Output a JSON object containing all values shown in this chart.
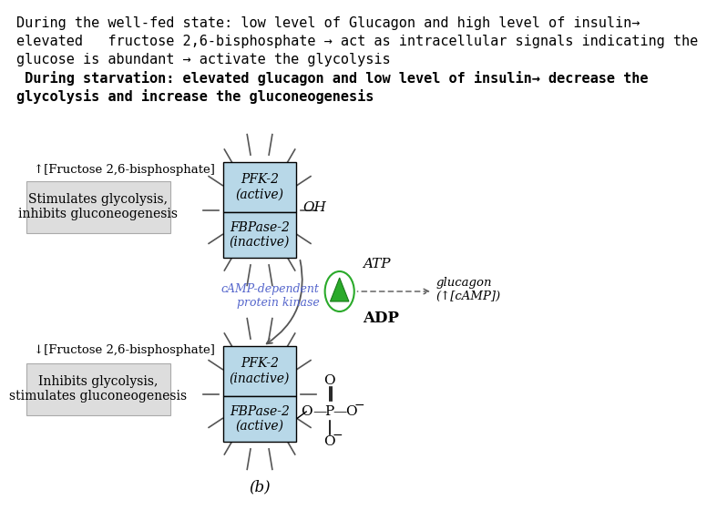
{
  "background_color": "#ffffff",
  "text_line1": "During the well-fed state: low level of Glucagon and high level of insulin→",
  "text_line2": "elevated   fructose 2,6-bisphosphate → act as intracellular signals indicating the",
  "text_line3": "glucose is abundant → activate the glycolysis",
  "text_line4_bold": " During starvation: elevated glucagon and low level of insulin→ decrease the",
  "text_line5_bold": "glycolysis and increase the gluconeogenesis",
  "box_top_pfk_label": "PFK-2",
  "box_top_pfk_sub": "(active)",
  "box_top_fbp_label": "FBPase-2",
  "box_top_fbp_sub": "(inactive)",
  "box_bot_pfk_label": "PFK-2",
  "box_bot_pfk_sub": "(inactive)",
  "box_bot_fbp_label": "FBPase-2",
  "box_bot_fbp_sub": "(active)",
  "box_color": "#b8d8e8",
  "left_label_top_up": "↑[Fructose 2,6-bisphosphate]",
  "left_label_top_box": "Stimulates glycolysis,\ninhibits gluconeogenesis",
  "left_label_bot_up": "↓[Fructose 2,6-bisphosphate]",
  "left_label_bot_box": "Inhibits glycolysis,\nstimulates gluconeogenesis",
  "label_OH": "OH",
  "label_ATP": "ATP",
  "label_ADP": "ADP",
  "label_glucagon": "glucagon\n(↑[cAMP])",
  "label_kinase": "cAMP-dependent\nprotein kinase",
  "label_b": "(b)",
  "kinase_color": "#2aaa2a",
  "arrow_color": "#555555",
  "dashed_color": "#555555",
  "label_color_kinase": "#5566cc",
  "ray_color": "#555555",
  "gray_box_color": "#dddddd",
  "gray_box_edge": "#aaaaaa"
}
